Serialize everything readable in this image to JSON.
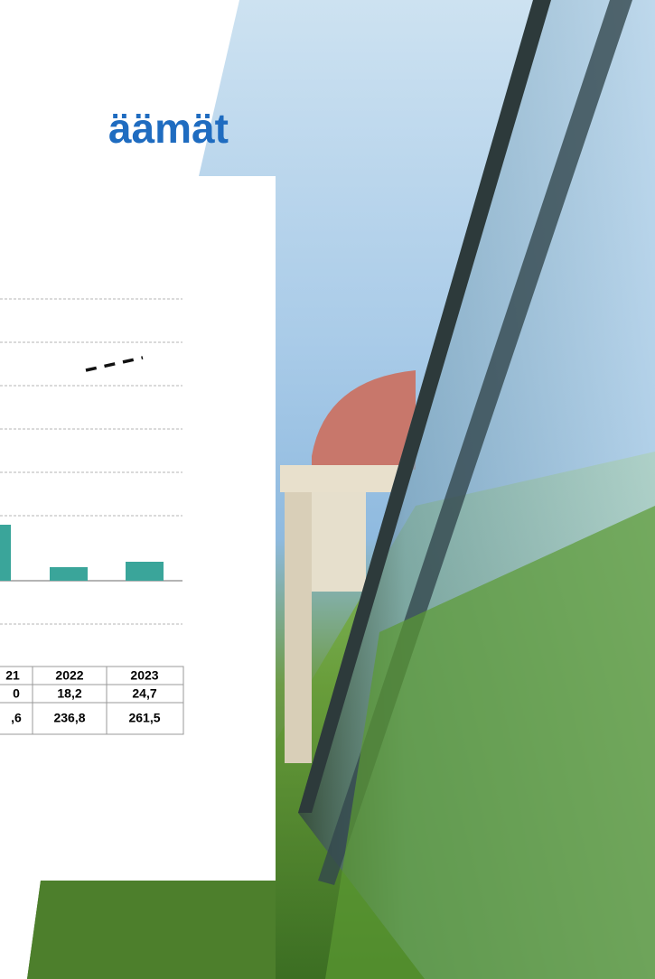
{
  "title": "äämät",
  "table": {
    "header": [
      "21",
      "2022",
      "2023"
    ],
    "rows": [
      [
        "0",
        "18,2",
        "24,7"
      ],
      [
        ",6",
        "236,8",
        "261,5"
      ]
    ]
  }
}
